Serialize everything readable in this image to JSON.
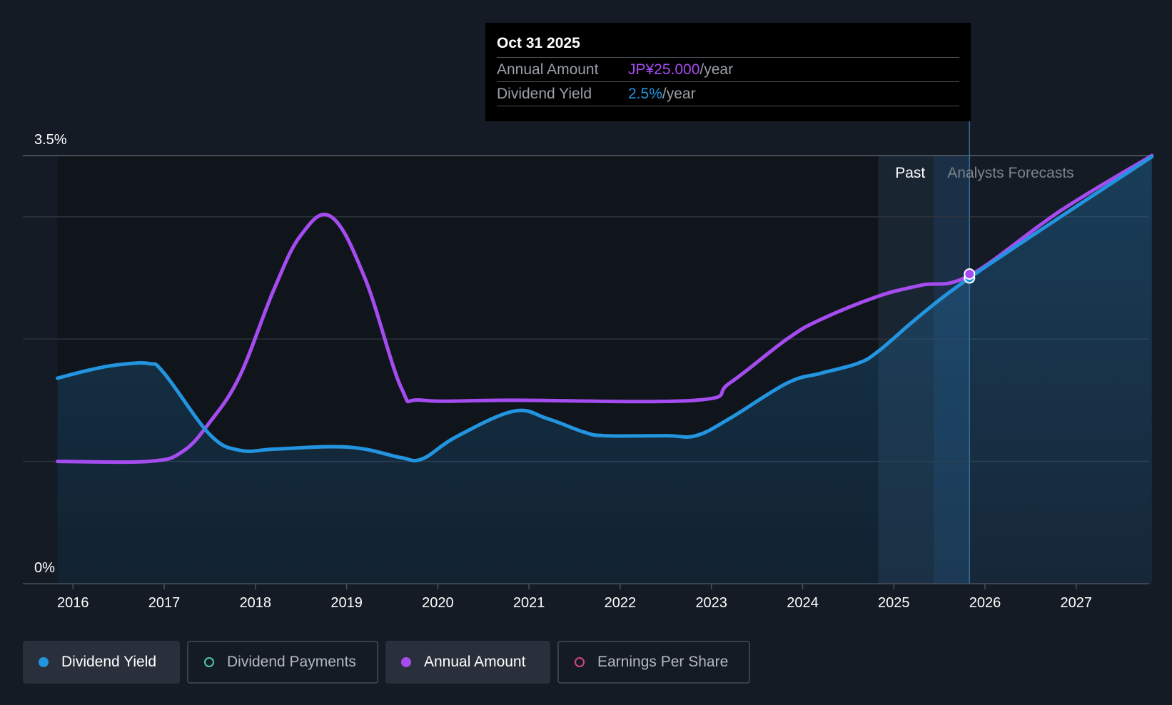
{
  "tooltip": {
    "date": "Oct 31 2025",
    "annual_amount_label": "Annual Amount",
    "annual_amount_value": "JP¥25.000",
    "annual_amount_unit": "/year",
    "dividend_yield_label": "Dividend Yield",
    "dividend_yield_value": "2.5%",
    "dividend_yield_unit": "/year"
  },
  "regions": {
    "past_label": "Past",
    "forecast_label": "Analysts Forecasts"
  },
  "legend": [
    {
      "label": "Dividend Yield",
      "color": "#2394df",
      "active": true,
      "filled": true
    },
    {
      "label": "Dividend Payments",
      "color": "#4ec6b4",
      "active": false,
      "filled": false
    },
    {
      "label": "Annual Amount",
      "color": "#a54cf0",
      "active": true,
      "filled": true
    },
    {
      "label": "Earnings Per Share",
      "color": "#d6467c",
      "active": false,
      "filled": false
    }
  ],
  "colors": {
    "yield": "#2394df",
    "amount": "#a54cf0",
    "grid": "#3a404a",
    "background": "#151b25"
  },
  "chart_data": {
    "type": "line",
    "title": "",
    "xlabel": "",
    "ylabel": "",
    "y_tick_labels": [
      "0%",
      "3.5%"
    ],
    "ylim": [
      0,
      3.5
    ],
    "xlim": [
      2015.45,
      2027.8
    ],
    "x_ticks": [
      2016,
      2017,
      2018,
      2019,
      2020,
      2021,
      2022,
      2023,
      2024,
      2025,
      2026,
      2027
    ],
    "grid": true,
    "legend_position": "bottom-left",
    "past_region": [
      2024.83,
      2025.83
    ],
    "current_x": 2025.83,
    "series": [
      {
        "name": "Dividend Yield",
        "color": "#2394df",
        "area": true,
        "points": [
          [
            2015.83,
            1.68
          ],
          [
            2016.2,
            1.75
          ],
          [
            2016.5,
            1.79
          ],
          [
            2016.83,
            1.8
          ],
          [
            2017.0,
            1.72
          ],
          [
            2017.5,
            1.22
          ],
          [
            2017.83,
            1.09
          ],
          [
            2018.2,
            1.1
          ],
          [
            2018.83,
            1.12
          ],
          [
            2019.2,
            1.1
          ],
          [
            2019.6,
            1.03
          ],
          [
            2019.83,
            1.02
          ],
          [
            2020.2,
            1.2
          ],
          [
            2020.83,
            1.41
          ],
          [
            2021.2,
            1.35
          ],
          [
            2021.6,
            1.24
          ],
          [
            2021.83,
            1.21
          ],
          [
            2022.5,
            1.21
          ],
          [
            2022.83,
            1.21
          ],
          [
            2023.2,
            1.35
          ],
          [
            2023.83,
            1.64
          ],
          [
            2024.2,
            1.72
          ],
          [
            2024.6,
            1.8
          ],
          [
            2024.83,
            1.9
          ],
          [
            2025.3,
            2.2
          ],
          [
            2025.83,
            2.5
          ],
          [
            2026.83,
            3.0
          ],
          [
            2027.83,
            3.49
          ]
        ]
      },
      {
        "name": "Annual Amount",
        "color": "#a54cf0",
        "area": false,
        "points": [
          [
            2015.83,
            1.0
          ],
          [
            2016.83,
            1.0
          ],
          [
            2017.2,
            1.08
          ],
          [
            2017.5,
            1.32
          ],
          [
            2017.83,
            1.7
          ],
          [
            2018.2,
            2.4
          ],
          [
            2018.5,
            2.85
          ],
          [
            2018.83,
            3.0
          ],
          [
            2019.2,
            2.5
          ],
          [
            2019.6,
            1.6
          ],
          [
            2019.83,
            1.5
          ],
          [
            2020.83,
            1.5
          ],
          [
            2022.83,
            1.5
          ],
          [
            2023.2,
            1.64
          ],
          [
            2023.83,
            2.0
          ],
          [
            2024.2,
            2.16
          ],
          [
            2024.83,
            2.35
          ],
          [
            2025.3,
            2.44
          ],
          [
            2025.83,
            2.52
          ],
          [
            2026.83,
            3.05
          ],
          [
            2027.83,
            3.5
          ]
        ]
      }
    ]
  }
}
